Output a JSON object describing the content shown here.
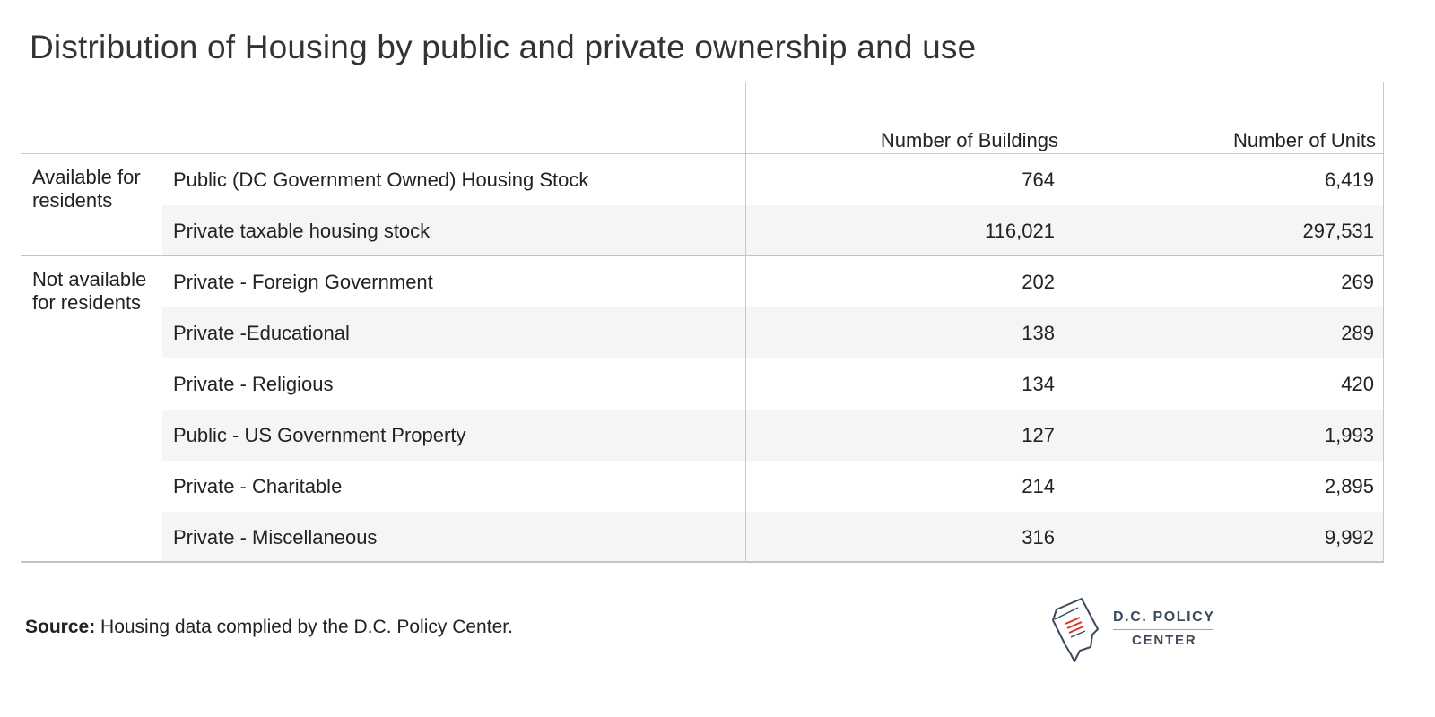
{
  "title": "Distribution of Housing by public and private ownership and use",
  "columns": [
    "Number of Buildings",
    "Number of Units"
  ],
  "groups": [
    {
      "label": "Available for\nresidents"
    },
    {
      "label": "Not available\nfor residents"
    }
  ],
  "rows": [
    {
      "label": "Public (DC Government Owned) Housing Stock",
      "buildings": "764",
      "units": "6,419"
    },
    {
      "label": "Private taxable housing stock",
      "buildings": "116,021",
      "units": "297,531"
    },
    {
      "label": "Private - Foreign Government",
      "buildings": "202",
      "units": "269"
    },
    {
      "label": "Private -Educational",
      "buildings": "138",
      "units": "289"
    },
    {
      "label": "Private - Religious",
      "buildings": "134",
      "units": "420"
    },
    {
      "label": "Public - US Government Property",
      "buildings": "127",
      "units": "1,993"
    },
    {
      "label": "Private - Charitable",
      "buildings": "214",
      "units": "2,895"
    },
    {
      "label": "Private - Miscellaneous",
      "buildings": "316",
      "units": "9,992"
    }
  ],
  "source": {
    "label": "Source:",
    "text": " Housing data complied by the D.C. Policy Center."
  },
  "logo": {
    "line1": "D.C. POLICY",
    "line2": "CENTER"
  },
  "colors": {
    "row_stripe": "#f5f5f5",
    "rule": "#c8c8c8",
    "logo_red": "#d9362b",
    "logo_navy": "#3b4a5c"
  },
  "chart_data": {
    "type": "table",
    "title": "Distribution of Housing by public and private ownership and use",
    "columns": [
      "",
      "",
      "Number of Buildings",
      "Number of Units"
    ],
    "rows": [
      [
        "Available for residents",
        "Public (DC Government Owned) Housing Stock",
        764,
        6419
      ],
      [
        "Available for residents",
        "Private taxable housing stock",
        116021,
        297531
      ],
      [
        "Not available for residents",
        "Private - Foreign Government",
        202,
        269
      ],
      [
        "Not available for residents",
        "Private -Educational",
        138,
        289
      ],
      [
        "Not available for residents",
        "Private - Religious",
        134,
        420
      ],
      [
        "Not available for residents",
        "Public - US Government Property",
        127,
        1993
      ],
      [
        "Not available for residents",
        "Private - Charitable",
        214,
        2895
      ],
      [
        "Not available for residents",
        "Private - Miscellaneous",
        316,
        9992
      ]
    ]
  }
}
